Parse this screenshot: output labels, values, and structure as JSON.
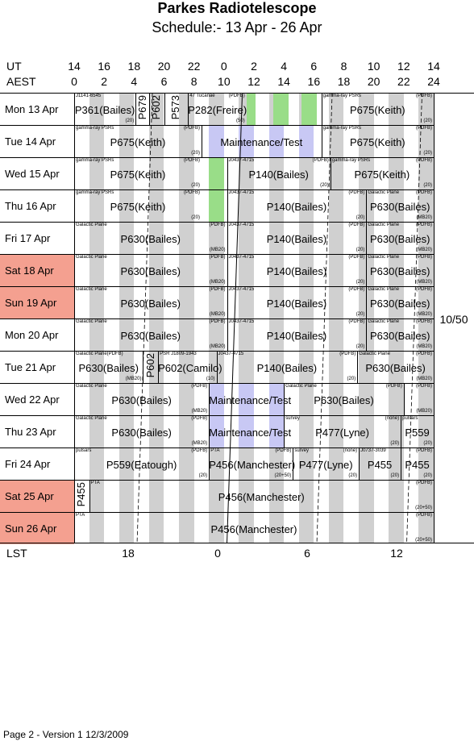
{
  "title": "Parkes Radiotelescope",
  "subtitle": "Schedule:- 13 Apr - 26 Apr",
  "header": {
    "ut_label": "UT",
    "aest_label": "AEST",
    "lst_label": "LST",
    "ut": [
      "14",
      "16",
      "18",
      "20",
      "22",
      "0",
      "2",
      "4",
      "6",
      "8",
      "10",
      "12",
      "14"
    ],
    "aest": [
      "0",
      "2",
      "4",
      "6",
      "8",
      "10",
      "12",
      "14",
      "16",
      "18",
      "20",
      "22",
      "24"
    ],
    "lst": [
      "18",
      "0",
      "6",
      "12"
    ]
  },
  "days": [
    {
      "label": "Mon   13 Apr",
      "weekend": false
    },
    {
      "label": "Tue   14 Apr",
      "weekend": false
    },
    {
      "label": "Wed   15 Apr",
      "weekend": false
    },
    {
      "label": "Thu   16 Apr",
      "weekend": false
    },
    {
      "label": "Fri    17 Apr",
      "weekend": false
    },
    {
      "label": "Sat   18 Apr",
      "weekend": true
    },
    {
      "label": "Sun   19 Apr",
      "weekend": true
    },
    {
      "label": "Mon   20 Apr",
      "weekend": false
    },
    {
      "label": "Tue   21 Apr",
      "weekend": false
    },
    {
      "label": "Wed   22 Apr",
      "weekend": false
    },
    {
      "label": "Thu   23 Apr",
      "weekend": false
    },
    {
      "label": "Fri    24 Apr",
      "weekend": false
    },
    {
      "label": "Sat   25 Apr",
      "weekend": true
    },
    {
      "label": "Sun   26 Apr",
      "weekend": true
    }
  ],
  "rows": [
    [
      {
        "s": 0,
        "e": 4.1,
        "main": "P361(Bailes)",
        "src": "J1141-6545",
        "note": "",
        "bot": "(20)"
      },
      {
        "s": 4.1,
        "e": 5.0,
        "vert": "P679"
      },
      {
        "s": 5.0,
        "e": 6.0,
        "vert": "P602"
      },
      {
        "s": 6.0,
        "e": 7.6,
        "vert": "P573"
      },
      {
        "s": 7.6,
        "e": 11.5,
        "main": "P282(Freire)",
        "src": "47 Tucanae",
        "note": "(PDFB)",
        "bot": "(50)"
      },
      {
        "s": 16.5,
        "e": 24,
        "main": "P675(Keith)",
        "src": "gamma-ray PSRs",
        "note": "(PDFB)",
        "bot": "(20)"
      }
    ],
    [
      {
        "s": 0,
        "e": 8.5,
        "main": "P675(Keith)",
        "src": "gamma-ray PSRs",
        "note": "(PDFB)",
        "bot": "(20)"
      },
      {
        "s": 8.5,
        "e": 16.5,
        "main": "Maintenance/Test",
        "src": "",
        "note": "",
        "bot": ""
      },
      {
        "s": 16.5,
        "e": 24,
        "main": "P675(Keith)",
        "src": "gamma-ray PSRs",
        "note": "(PDFB)",
        "bot": "(20)"
      }
    ],
    [
      {
        "s": 0,
        "e": 8.5,
        "main": "P675(Keith)",
        "src": "gamma-ray PSRs",
        "note": "(PDFB)",
        "bot": "(20)"
      },
      {
        "s": 10.2,
        "e": 17.1,
        "main": "P140(Bailes)",
        "src": "J0437-4715",
        "note": "(PDFB)",
        "bot": "(20)"
      },
      {
        "s": 17.1,
        "e": 24,
        "main": "P675(Keith)",
        "src": "gamma-ray PSRs",
        "note": "(PDFB)",
        "bot": "(20)"
      }
    ],
    [
      {
        "s": 0,
        "e": 8.5,
        "main": "P675(Keith)",
        "src": "gamma-ray PSRs",
        "note": "(PDFB)",
        "bot": "(20)"
      },
      {
        "s": 10.2,
        "e": 19.5,
        "main": "P140(Bailes)",
        "src": "J0437-4715",
        "note": "(PDFB)",
        "bot": "(20)"
      },
      {
        "s": 19.5,
        "e": 24,
        "main": "P630(Bailes)",
        "src": "Galactic Plane",
        "note": "(PDFB)",
        "bot": "(MB20)"
      }
    ],
    [
      {
        "s": 0,
        "e": 10.2,
        "main": "P630(Bailes)",
        "src": "Galactic Plane",
        "note": "(PDFB)",
        "bot": "(MB20)"
      },
      {
        "s": 10.2,
        "e": 19.5,
        "main": "P140(Bailes)",
        "src": "J0437-4715",
        "note": "(PDFB)",
        "bot": "(20)"
      },
      {
        "s": 19.5,
        "e": 24,
        "main": "P630(Bailes)",
        "src": "Galactic Plane",
        "note": "(PDFB)",
        "bot": "(MB20)"
      }
    ],
    [
      {
        "s": 0,
        "e": 10.2,
        "main": "P630(Bailes)",
        "src": "Galactic Plane",
        "note": "(PDFB)",
        "bot": "(MB20)"
      },
      {
        "s": 10.2,
        "e": 19.5,
        "main": "P140(Bailes)",
        "src": "J0437-4715",
        "note": "(PDFB)",
        "bot": "(20)"
      },
      {
        "s": 19.5,
        "e": 24,
        "main": "P630(Bailes)",
        "src": "Galactic Plane",
        "note": "(PDFB)",
        "bot": "(MB20)"
      }
    ],
    [
      {
        "s": 0,
        "e": 10.2,
        "main": "P630(Bailes)",
        "src": "Galactic Plane",
        "note": "(PDFB)",
        "bot": "(MB20)"
      },
      {
        "s": 10.2,
        "e": 19.5,
        "main": "P140(Bailes)",
        "src": "J0437-4715",
        "note": "(PDFB)",
        "bot": "(20)"
      },
      {
        "s": 19.5,
        "e": 24,
        "main": "P630(Bailes)",
        "src": "Galactic Plane",
        "note": "(PDFB)",
        "bot": "(MB20)"
      }
    ],
    [
      {
        "s": 0,
        "e": 10.2,
        "main": "P630(Bailes)",
        "src": "Galactic Plane",
        "note": "(PDFB)",
        "bot": "(MB20)"
      },
      {
        "s": 10.2,
        "e": 19.5,
        "main": "P140(Bailes)",
        "src": "J0437-4715",
        "note": "(PDFB)",
        "bot": "(20)"
      },
      {
        "s": 19.5,
        "e": 24,
        "main": "P630(Bailes)",
        "src": "Galactic Plane",
        "note": "(PDFB)",
        "bot": "(MB20)"
      }
    ],
    [
      {
        "s": 0,
        "e": 4.6,
        "main": "P630(Bailes)",
        "src": "Galactic Plane(PDFB)",
        "note": "",
        "bot": "(MB20)"
      },
      {
        "s": 4.6,
        "e": 5.6,
        "vert": "P602"
      },
      {
        "s": 5.6,
        "e": 9.5,
        "main": "P602(Camilo)",
        "src": "PSR J1809-1943",
        "note": "",
        "bot": "(10)"
      },
      {
        "s": 9.5,
        "e": 18.9,
        "main": "P140(Bailes)",
        "src": "J0437-4715",
        "note": "(PDFB)",
        "bot": "(20)"
      },
      {
        "s": 18.9,
        "e": 24,
        "main": "P630(Bailes)",
        "src": "Galactic Plane",
        "note": "(PDFB)",
        "bot": "(MB20)"
      }
    ],
    [
      {
        "s": 0,
        "e": 9.0,
        "main": "P630(Bailes)",
        "src": "Galactic Plane",
        "note": "(PDFB)",
        "bot": "(MB20)"
      },
      {
        "s": 9.0,
        "e": 14.0,
        "main": "Maintenance/Test",
        "src": "",
        "note": "",
        "bot": ""
      },
      {
        "s": 14.0,
        "e": 22.0,
        "main": "P630(Bailes)",
        "src": "Galactic Plane",
        "note": "(PDFB)",
        "bot": ""
      },
      {
        "s": 22.0,
        "e": 24,
        "main": "",
        "src": "",
        "note": "(PDFB)",
        "bot": "(MB20)"
      }
    ],
    [
      {
        "s": 0,
        "e": 9.0,
        "main": "P630(Bailes)",
        "src": "Galactic Plane",
        "note": "(PDFB)",
        "bot": "(MB20)"
      },
      {
        "s": 9.0,
        "e": 14.0,
        "main": "Maintenance/Test",
        "src": "",
        "note": "",
        "bot": ""
      },
      {
        "s": 14.0,
        "e": 21.8,
        "main": "P477(Lyne)",
        "src": "survey",
        "note": "(none)",
        "bot": "(20)"
      },
      {
        "s": 21.8,
        "e": 24,
        "main": "P559",
        "src": "pulsars",
        "note": "",
        "bot": "(20)"
      }
    ],
    [
      {
        "s": 0,
        "e": 9.0,
        "main": "P559(Eatough)",
        "src": "pulsars",
        "note": "(PDFB)",
        "bot": "(20)"
      },
      {
        "s": 9.0,
        "e": 14.6,
        "main": "P456(Manchester)",
        "src": "PTA",
        "note": "(PDFB)",
        "bot": "(20+50)"
      },
      {
        "s": 14.6,
        "e": 19.0,
        "main": "P477(Lyne)",
        "src": "survey",
        "note": "(none)",
        "bot": "(20)"
      },
      {
        "s": 19.0,
        "e": 21.8,
        "main": "P455",
        "src": "J0737-3039",
        "note": "",
        "bot": "(20)"
      },
      {
        "s": 21.8,
        "e": 24,
        "main": "P455",
        "src": "",
        "note": "(PDFB)",
        "bot": "(20)"
      }
    ],
    [
      {
        "s": 0,
        "e": 1.0,
        "vert": "P455"
      },
      {
        "s": 1.0,
        "e": 24,
        "main": "P456(Manchester)",
        "src": "PTA",
        "note": "(PDFB)",
        "bot": "(20+50)"
      }
    ],
    [
      {
        "s": 0,
        "e": 24,
        "main": "P456(Manchester)",
        "src": "PTA",
        "note": "(PDFB)",
        "bot": "(20+50)"
      }
    ]
  ],
  "sidenote": "10/50",
  "footer": "Page 2 - Version 1  12/3/2009"
}
